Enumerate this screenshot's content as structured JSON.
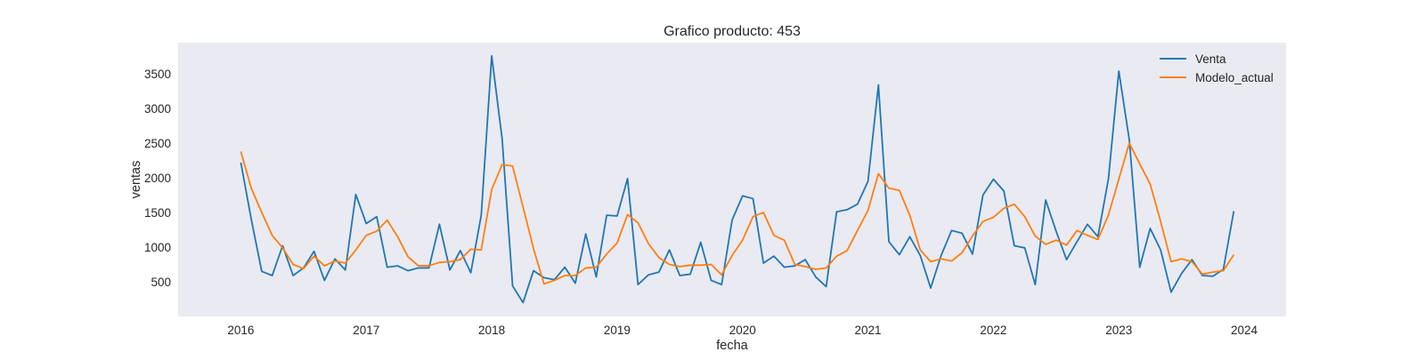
{
  "chart_data": {
    "type": "line",
    "title": "Grafico producto: 453",
    "xlabel": "fecha",
    "ylabel": "ventas",
    "x_tick_labels": [
      "2016",
      "2017",
      "2018",
      "2019",
      "2020",
      "2021",
      "2022",
      "2023",
      "2024"
    ],
    "y_tick_labels": [
      "500",
      "1000",
      "1500",
      "2000",
      "2500",
      "3000",
      "3500"
    ],
    "y_ticks": [
      500,
      1000,
      1500,
      2000,
      2500,
      3000,
      3500
    ],
    "xlim": [
      "2015-07-01",
      "2024-05-01"
    ],
    "ylim": [
      0,
      3950
    ],
    "x_date_range": {
      "start": "2016-01",
      "end": "2023-12",
      "frequency": "monthly"
    },
    "grid": false,
    "legend_position": "top-right",
    "background_color": "#eaeaf2",
    "series": [
      {
        "name": "Venta",
        "color": "#1f77b4",
        "values": [
          2220,
          1400,
          650,
          590,
          1020,
          590,
          700,
          940,
          520,
          830,
          670,
          1760,
          1340,
          1440,
          710,
          730,
          660,
          700,
          700,
          1330,
          670,
          950,
          630,
          1460,
          3760,
          2560,
          440,
          200,
          660,
          560,
          530,
          710,
          480,
          1190,
          570,
          1460,
          1450,
          1990,
          460,
          600,
          640,
          960,
          590,
          610,
          1070,
          520,
          460,
          1390,
          1740,
          1700,
          770,
          870,
          710,
          730,
          820,
          570,
          430,
          1510,
          1540,
          1620,
          1950,
          3340,
          1080,
          890,
          1150,
          880,
          410,
          880,
          1240,
          1200,
          900,
          1750,
          1980,
          1810,
          1020,
          990,
          460,
          1680,
          1230,
          820,
          1080,
          1330,
          1150,
          1980,
          3540,
          2550,
          710,
          1270,
          960,
          350,
          620,
          820,
          590,
          580,
          680,
          1520
        ]
      },
      {
        "name": "Modelo_actual",
        "color": "#ff7f0e",
        "values": [
          2380,
          1850,
          1500,
          1170,
          990,
          750,
          690,
          870,
          730,
          800,
          770,
          960,
          1170,
          1230,
          1390,
          1150,
          860,
          730,
          730,
          780,
          790,
          820,
          970,
          960,
          1830,
          2190,
          2170,
          1580,
          980,
          470,
          520,
          590,
          590,
          700,
          710,
          900,
          1060,
          1470,
          1350,
          1050,
          850,
          750,
          720,
          740,
          740,
          750,
          600,
          880,
          1100,
          1440,
          1500,
          1170,
          1100,
          750,
          720,
          680,
          700,
          870,
          950,
          1240,
          1530,
          2060,
          1850,
          1820,
          1460,
          960,
          790,
          830,
          800,
          920,
          1160,
          1370,
          1430,
          1560,
          1620,
          1440,
          1160,
          1040,
          1100,
          1030,
          1240,
          1170,
          1110,
          1460,
          1980,
          2500,
          2200,
          1910,
          1370,
          790,
          830,
          790,
          610,
          640,
          660,
          890
        ]
      }
    ]
  }
}
